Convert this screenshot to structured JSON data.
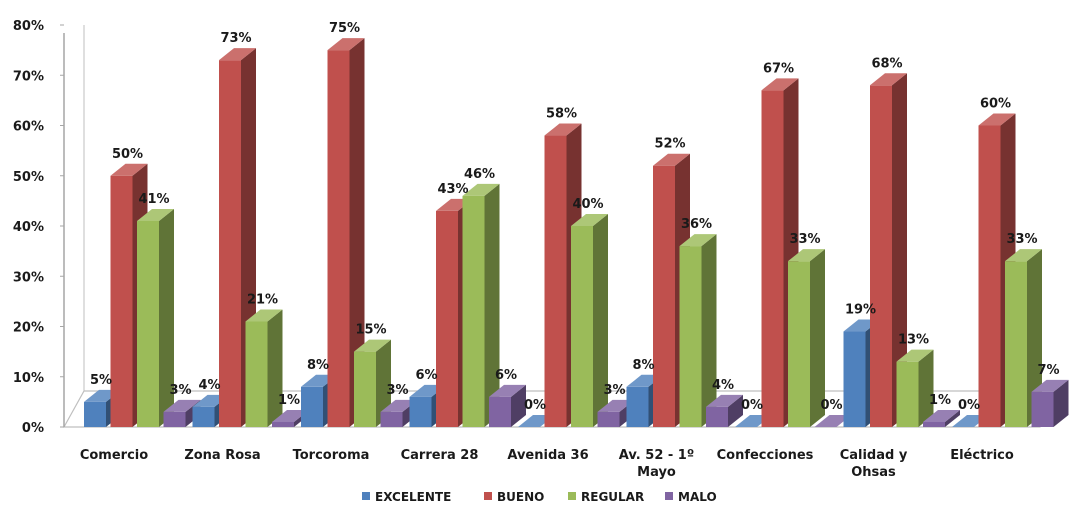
{
  "chart_data": {
    "type": "bar",
    "title": "",
    "xlabel": "",
    "ylabel": "",
    "ylim": [
      0,
      80
    ],
    "ytick_labels": [
      "0%",
      "10%",
      "20%",
      "30%",
      "40%",
      "50%",
      "60%",
      "70%",
      "80%"
    ],
    "categories": [
      [
        "Comercio"
      ],
      [
        "Zona Rosa"
      ],
      [
        "Torcoroma"
      ],
      [
        "Carrera 28"
      ],
      [
        "Avenida 36"
      ],
      [
        "Av. 52 - 1º",
        "Mayo"
      ],
      [
        "Confecciones"
      ],
      [
        "Calidad y",
        "Ohsas"
      ],
      [
        "Eléctrico"
      ]
    ],
    "series": [
      {
        "name": "EXCELENTE",
        "color": "#4f81bd",
        "values": [
          5,
          4,
          8,
          6,
          0,
          8,
          0,
          19,
          0
        ],
        "labels": [
          "5%",
          "4%",
          "8%",
          "6%",
          "0%",
          "8%",
          "0%",
          "19%",
          "0%"
        ]
      },
      {
        "name": "BUENO",
        "color": "#c0504d",
        "values": [
          50,
          73,
          75,
          43,
          58,
          52,
          67,
          68,
          60
        ],
        "labels": [
          "50%",
          "73%",
          "75%",
          "43%",
          "58%",
          "52%",
          "67%",
          "68%",
          "60%"
        ]
      },
      {
        "name": "REGULAR",
        "color": "#9bbb59",
        "values": [
          41,
          21,
          15,
          46,
          40,
          36,
          33,
          13,
          33
        ],
        "labels": [
          "41%",
          "21%",
          "15%",
          "46%",
          "40%",
          "36%",
          "33%",
          "13%",
          "33%"
        ]
      },
      {
        "name": "MALO",
        "color": "#8064a2",
        "values": [
          3,
          1,
          3,
          6,
          3,
          4,
          0,
          1,
          7
        ],
        "labels": [
          "3%",
          "1%",
          "3%",
          "6%",
          "3%",
          "4%",
          "0%",
          "1%",
          "7%"
        ]
      }
    ],
    "grid": false,
    "legend_position": "bottom"
  }
}
